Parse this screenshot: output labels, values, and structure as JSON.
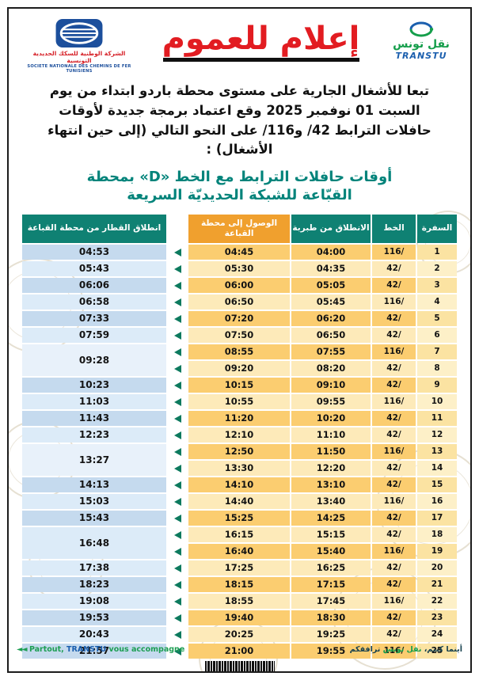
{
  "colors": {
    "title_red": "#e21c21",
    "header_teal": "#0f8173",
    "header_orange": "#f0a02e",
    "brand_green": "#159e4b",
    "brand_blue": "#1b5fae",
    "arrow_green": "#0d7a5e"
  },
  "header": {
    "sncft": {
      "name_ar": "الشركة الوطنية للسكك الحديدية التونسية",
      "name_fr": "SOCIETE NATIONALE DES CHEMINS DE FER TUNISIENS"
    },
    "title": "إعلام للعموم",
    "transtu": {
      "name_ar": "نقل تونس",
      "name_en": "TRANSTU"
    }
  },
  "intro": "تبعا للأشغال الجارية على مستوى محطة باردو ابتداء من يوم السبت 01 نوفمبر 2025 وقع اعتماد برمجة جديدة لأوقات حافلات الترابط 42/ و116/ على النحو التالي (إلى حين انتهاء الأشغال) :",
  "subtitle_line1": "أوقات حافلات الترابط مع الخط «D» بمحطة",
  "subtitle_line2": "القبّاعة للشبكة الحديديّة السريعة",
  "table": {
    "headers": {
      "trip": "السفرة",
      "line": "الخط",
      "depart": "الانطلاق من طبربة",
      "arrive": "الوصول إلى محطة القباعة",
      "train": "انطلاق القطار من محطة القباعة"
    },
    "rows": [
      {
        "trip": "1",
        "line": "116/",
        "depart": "04:00",
        "arrive": "04:45",
        "train": "04:53",
        "span": 1
      },
      {
        "trip": "2",
        "line": "42/",
        "depart": "04:35",
        "arrive": "05:30",
        "train": "05:43",
        "span": 1
      },
      {
        "trip": "3",
        "line": "42/",
        "depart": "05:05",
        "arrive": "06:00",
        "train": "06:06",
        "span": 1
      },
      {
        "trip": "4",
        "line": "116/",
        "depart": "05:45",
        "arrive": "06:50",
        "train": "06:58",
        "span": 1
      },
      {
        "trip": "5",
        "line": "42/",
        "depart": "06:20",
        "arrive": "07:20",
        "train": "07:33",
        "span": 1
      },
      {
        "trip": "6",
        "line": "42/",
        "depart": "06:50",
        "arrive": "07:50",
        "train": "07:59",
        "span": 1
      },
      {
        "trip": "7",
        "line": "116/",
        "depart": "07:55",
        "arrive": "08:55",
        "train": "09:28",
        "span": 2
      },
      {
        "trip": "8",
        "line": "42/",
        "depart": "08:20",
        "arrive": "09:20",
        "train": null,
        "span": 0
      },
      {
        "trip": "9",
        "line": "42/",
        "depart": "09:10",
        "arrive": "10:15",
        "train": "10:23",
        "span": 1
      },
      {
        "trip": "10",
        "line": "116/",
        "depart": "09:55",
        "arrive": "10:55",
        "train": "11:03",
        "span": 1
      },
      {
        "trip": "11",
        "line": "42/",
        "depart": "10:20",
        "arrive": "11:20",
        "train": "11:43",
        "span": 1
      },
      {
        "trip": "12",
        "line": "42/",
        "depart": "11:10",
        "arrive": "12:10",
        "train": "12:23",
        "span": 1
      },
      {
        "trip": "13",
        "line": "116/",
        "depart": "11:50",
        "arrive": "12:50",
        "train": "13:27",
        "span": 2
      },
      {
        "trip": "14",
        "line": "42/",
        "depart": "12:20",
        "arrive": "13:30",
        "train": null,
        "span": 0
      },
      {
        "trip": "15",
        "line": "42/",
        "depart": "13:10",
        "arrive": "14:10",
        "train": "14:13",
        "span": 1
      },
      {
        "trip": "16",
        "line": "116/",
        "depart": "13:40",
        "arrive": "14:40",
        "train": "15:03",
        "span": 1
      },
      {
        "trip": "17",
        "line": "42/",
        "depart": "14:25",
        "arrive": "15:25",
        "train": "15:43",
        "span": 1
      },
      {
        "trip": "18",
        "line": "42/",
        "depart": "15:15",
        "arrive": "16:15",
        "train": "16:48",
        "span": 2
      },
      {
        "trip": "19",
        "line": "116/",
        "depart": "15:40",
        "arrive": "16:40",
        "train": null,
        "span": 0
      },
      {
        "trip": "20",
        "line": "42/",
        "depart": "16:25",
        "arrive": "17:25",
        "train": "17:38",
        "span": 1
      },
      {
        "trip": "21",
        "line": "42/",
        "depart": "17:15",
        "arrive": "18:15",
        "train": "18:23",
        "span": 1
      },
      {
        "trip": "22",
        "line": "116/",
        "depart": "17:45",
        "arrive": "18:55",
        "train": "19:08",
        "span": 1
      },
      {
        "trip": "23",
        "line": "42/",
        "depart": "18:30",
        "arrive": "19:40",
        "train": "19:53",
        "span": 1
      },
      {
        "trip": "24",
        "line": "42/",
        "depart": "19:25",
        "arrive": "20:25",
        "train": "20:43",
        "span": 1
      },
      {
        "trip": "25",
        "line": "116/",
        "depart": "19:55",
        "arrive": "21:00",
        "train": "21:57",
        "span": 1
      }
    ]
  },
  "footer": {
    "ar_pre": "أينما كنتم،",
    "ar_brand": "نقل تونس",
    "ar_post": "ترافقكم",
    "fr_arrows": "◄◄",
    "fr_pre": "Partout,",
    "fr_brand": "TRANSTU",
    "fr_post": "vous accompagne"
  }
}
